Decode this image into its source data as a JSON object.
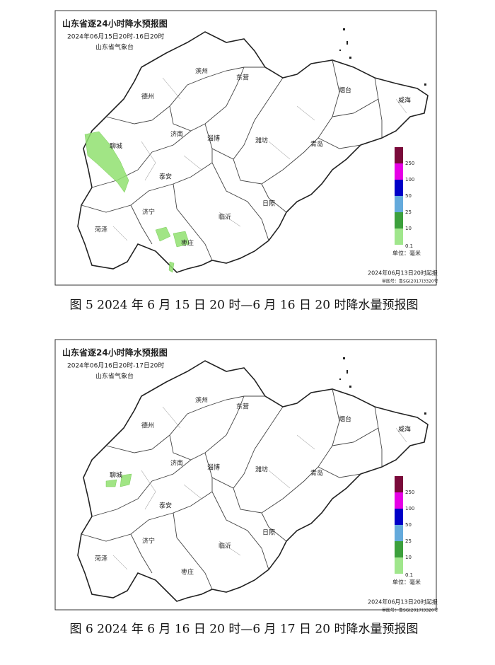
{
  "figures": [
    {
      "title": "山东省逐24小时降水预报图",
      "period": "2024年06月15日20时-16日20时",
      "issuer": "山东省气象台",
      "cities": [
        "德州",
        "滨州",
        "东营",
        "烟台",
        "威海",
        "聊城",
        "济南",
        "淄博",
        "潍坊",
        "青岛",
        "泰安",
        "济宁",
        "菏泽",
        "临沂",
        "日照",
        "枣庄"
      ],
      "legend_ticks": [
        250,
        100,
        50,
        25,
        10,
        0.1
      ],
      "unit": "单位：毫米",
      "issued": "2024年06月13日20时起报",
      "review_no": "审图号：鲁SG(2017)3320号",
      "caption": "图 5 2024 年 6 月 15 日 20 时—6 月 16 日 20 时降水量预报图"
    },
    {
      "title": "山东省逐24小时降水预报图",
      "period": "2024年06月16日20时-17日20时",
      "issuer": "山东省气象台",
      "cities": [
        "德州",
        "滨州",
        "东营",
        "烟台",
        "威海",
        "聊城",
        "济南",
        "淄博",
        "潍坊",
        "青岛",
        "泰安",
        "济宁",
        "菏泽",
        "临沂",
        "日照",
        "枣庄"
      ],
      "legend_ticks": [
        250,
        100,
        50,
        25,
        10,
        0.1
      ],
      "unit": "单位：毫米",
      "issued": "2024年06月13日20时起报",
      "review_no": "审图号：鲁SG(2017)3320号",
      "caption": "图 6 2024 年 6 月 16 日 20 时—6 月 17 日 20 时降水量预报图"
    }
  ]
}
